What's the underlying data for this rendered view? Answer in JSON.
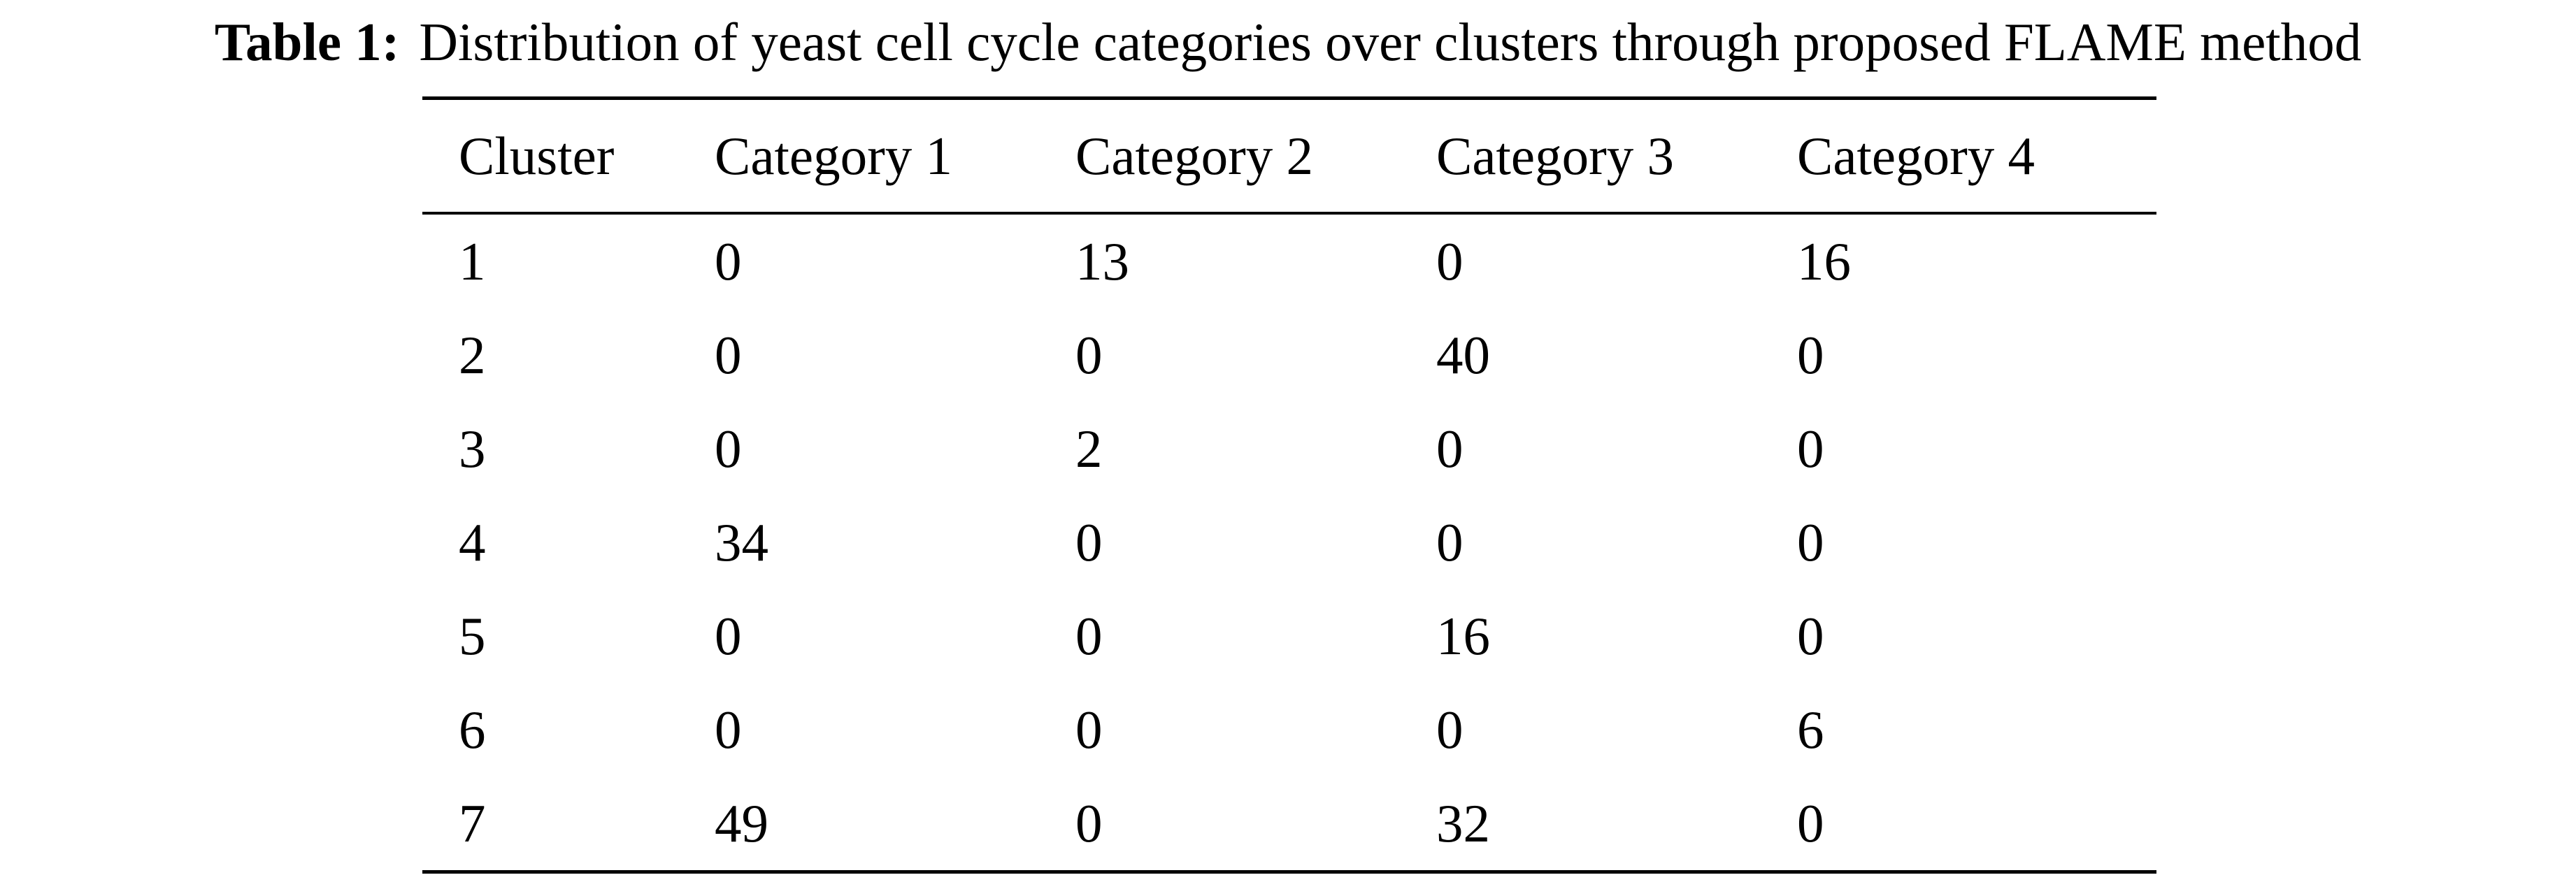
{
  "caption": {
    "label": "Table 1:",
    "text": "Distribution of yeast cell cycle categories over clusters through proposed FLAME method"
  },
  "table": {
    "headers": [
      "Cluster",
      "Category 1",
      "Category 2",
      "Category 3",
      "Category 4"
    ],
    "rows": [
      [
        "1",
        "0",
        "13",
        "0",
        "16"
      ],
      [
        "2",
        "0",
        "0",
        "40",
        "0"
      ],
      [
        "3",
        "0",
        "2",
        "0",
        "0"
      ],
      [
        "4",
        "34",
        "0",
        "0",
        "0"
      ],
      [
        "5",
        "0",
        "0",
        "16",
        "0"
      ],
      [
        "6",
        "0",
        "0",
        "0",
        "6"
      ],
      [
        "7",
        "49",
        "0",
        "32",
        "0"
      ]
    ]
  }
}
